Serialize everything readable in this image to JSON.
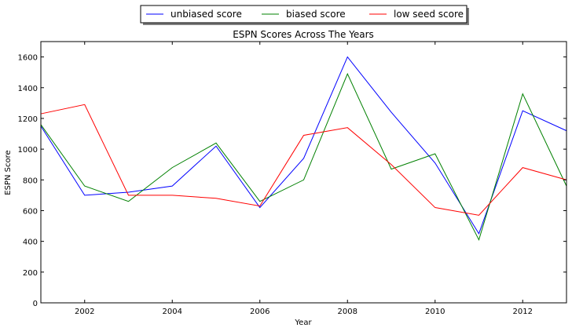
{
  "chart_data": {
    "type": "line",
    "title": "ESPN Scores Across The Years",
    "xlabel": "Year",
    "ylabel": "ESPN Score",
    "xlim": [
      2001,
      2013
    ],
    "ylim": [
      0,
      1700
    ],
    "x_ticks": [
      2002,
      2004,
      2006,
      2008,
      2010,
      2012
    ],
    "y_ticks": [
      0,
      200,
      400,
      600,
      800,
      1000,
      1200,
      1400,
      1600
    ],
    "grid": false,
    "legend_position": "top-center",
    "legend_columns": 3,
    "x": [
      2001,
      2002,
      2003,
      2004,
      2005,
      2006,
      2007,
      2008,
      2009,
      2010,
      2011,
      2012,
      2013
    ],
    "series": [
      {
        "name": "unbiased score",
        "color": "#0000ff",
        "values": [
          1150,
          700,
          720,
          760,
          1020,
          620,
          940,
          1600,
          1240,
          910,
          450,
          1250,
          1120
        ]
      },
      {
        "name": "biased score",
        "color": "#008000",
        "values": [
          1160,
          760,
          660,
          880,
          1040,
          660,
          800,
          1490,
          870,
          970,
          410,
          1360,
          760
        ]
      },
      {
        "name": "low seed score",
        "color": "#ff0000",
        "values": [
          1230,
          1290,
          700,
          700,
          680,
          630,
          1090,
          1140,
          900,
          620,
          570,
          880,
          800
        ]
      }
    ]
  }
}
